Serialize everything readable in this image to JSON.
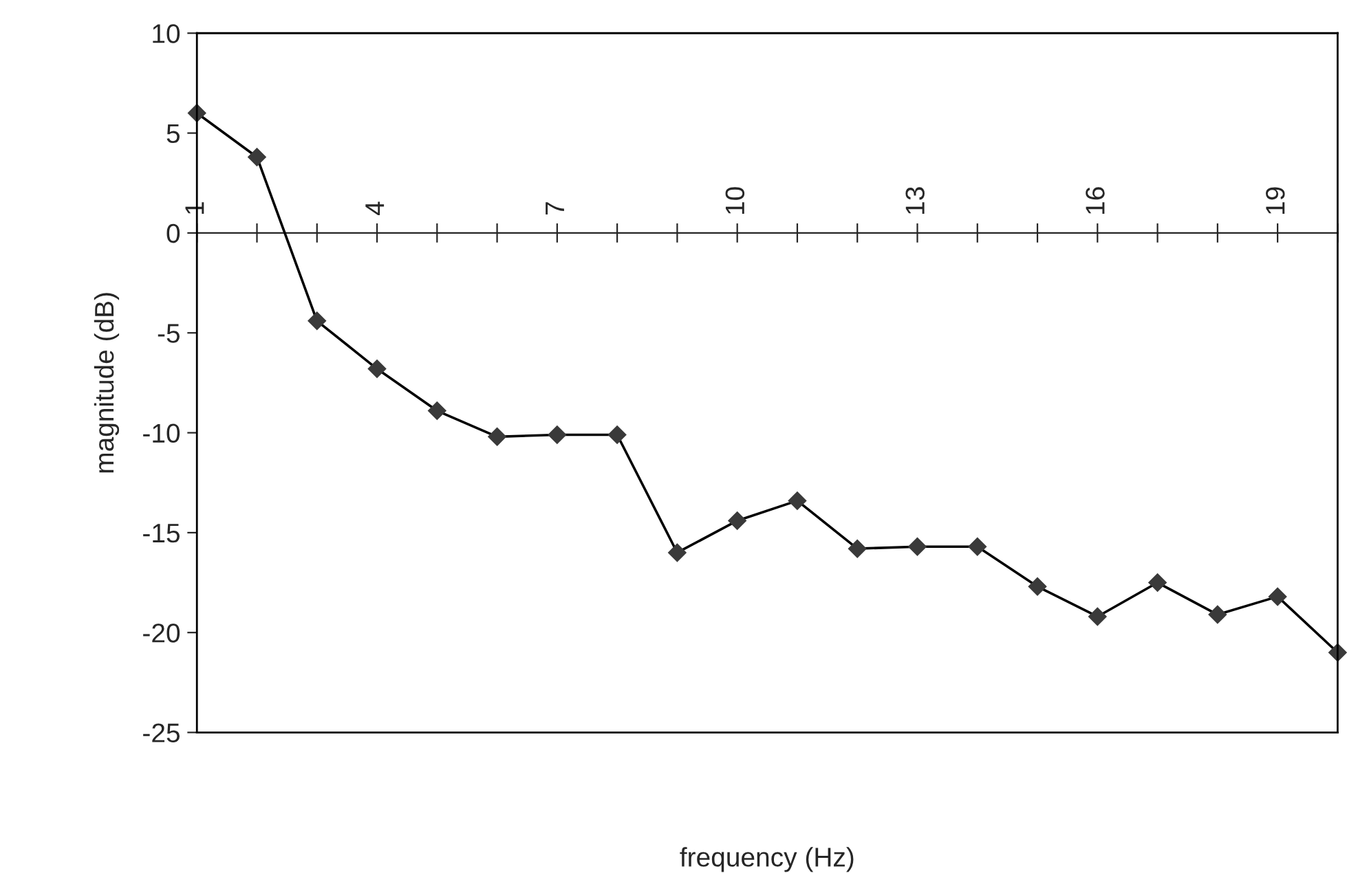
{
  "chart_data": {
    "type": "line",
    "xlabel": "frequency (Hz)",
    "ylabel": "magnitude (dB)",
    "categories": [
      "1",
      null,
      null,
      "4",
      null,
      null,
      "7",
      null,
      null,
      "10",
      null,
      null,
      "13",
      null,
      null,
      "16",
      null,
      null,
      "19",
      null
    ],
    "series": [
      {
        "color": "#3a3a3a",
        "values": [
          6,
          3.8,
          -4.4,
          -6.8,
          -8.9,
          -10.2,
          -10.1,
          -10.1,
          -16.0,
          -14.4,
          -13.4,
          -15.8,
          -15.7,
          -15.7,
          -17.7,
          -19.2,
          -17.5,
          -19.1,
          -18.2,
          -21.0
        ]
      }
    ],
    "ylim": [
      -25,
      10
    ],
    "yticks": [
      -25,
      -20,
      -15,
      -10,
      -5,
      0,
      5,
      10
    ],
    "marker": "diamond",
    "line_style": "solid",
    "grid": false,
    "legend": false
  }
}
